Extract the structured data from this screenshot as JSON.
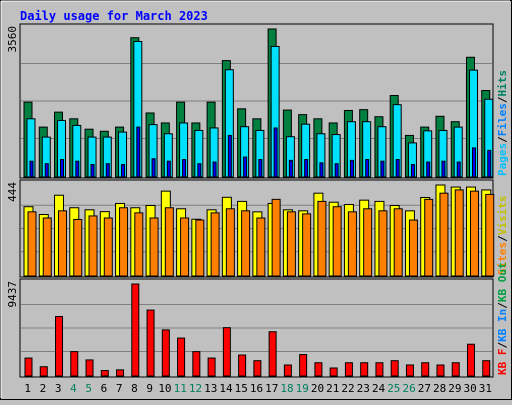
{
  "chart_data": [
    {
      "type": "bar",
      "title": "Daily usage for March 2023",
      "ylabel_max": "3560",
      "legend": [
        "Pages",
        "Files",
        "Hits"
      ],
      "categories": [
        "1",
        "2",
        "3",
        "4",
        "5",
        "6",
        "7",
        "8",
        "9",
        "10",
        "11",
        "12",
        "13",
        "14",
        "15",
        "16",
        "17",
        "18",
        "19",
        "20",
        "21",
        "22",
        "23",
        "24",
        "25",
        "26",
        "27",
        "28",
        "29",
        "30",
        "31"
      ],
      "weekend_days": [
        "4",
        "5",
        "11",
        "12",
        "18",
        "19",
        "25",
        "26"
      ],
      "series": [
        {
          "name": "Hits",
          "color": "#008040",
          "values": [
            1800,
            1200,
            1560,
            1400,
            1150,
            1100,
            1200,
            3350,
            1540,
            1300,
            1800,
            1300,
            1800,
            2800,
            1640,
            1400,
            3560,
            1610,
            1500,
            1400,
            1300,
            1600,
            1620,
            1450,
            1960,
            1000,
            1200,
            1460,
            1330,
            2880,
            2080
          ]
        },
        {
          "name": "Files",
          "color": "#00e0ff",
          "values": [
            1400,
            960,
            1360,
            1240,
            960,
            960,
            1080,
            3260,
            1260,
            1040,
            1300,
            1120,
            1180,
            2580,
            1210,
            1120,
            3140,
            970,
            1270,
            1040,
            1020,
            1330,
            1330,
            1210,
            1740,
            820,
            1110,
            1120,
            1200,
            2570,
            1870
          ]
        },
        {
          "name": "Pages",
          "color": "#0000ff",
          "values": [
            380,
            320,
            420,
            380,
            300,
            320,
            300,
            1200,
            440,
            380,
            420,
            320,
            360,
            1000,
            480,
            420,
            1180,
            400,
            420,
            340,
            320,
            400,
            420,
            380,
            420,
            300,
            360,
            380,
            360,
            700,
            640
          ]
        }
      ]
    },
    {
      "type": "bar",
      "ylabel_max": "444",
      "legend": [
        "Visits",
        "Sites"
      ],
      "categories": [
        "1",
        "2",
        "3",
        "4",
        "5",
        "6",
        "7",
        "8",
        "9",
        "10",
        "11",
        "12",
        "13",
        "14",
        "15",
        "16",
        "17",
        "18",
        "19",
        "20",
        "21",
        "22",
        "23",
        "24",
        "25",
        "26",
        "27",
        "28",
        "29",
        "30",
        "31"
      ],
      "series": [
        {
          "name": "Visits",
          "color": "#ffff00",
          "values": [
            338,
            300,
            394,
            333,
            323,
            314,
            354,
            333,
            344,
            414,
            328,
            277,
            323,
            384,
            364,
            313,
            354,
            323,
            318,
            404,
            360,
            349,
            370,
            364,
            344,
            318,
            383,
            444,
            434,
            434,
            420
          ]
        },
        {
          "name": "Sites",
          "color": "#ff8000",
          "values": [
            313,
            283,
            318,
            276,
            293,
            283,
            333,
            308,
            283,
            333,
            283,
            273,
            308,
            328,
            318,
            283,
            374,
            313,
            303,
            364,
            338,
            313,
            328,
            318,
            328,
            273,
            374,
            404,
            420,
            414,
            398
          ]
        }
      ]
    },
    {
      "type": "bar",
      "ylabel_max": "9437",
      "legend": [
        "KB F",
        "KB In",
        "KB Out"
      ],
      "categories": [
        "1",
        "2",
        "3",
        "4",
        "5",
        "6",
        "7",
        "8",
        "9",
        "10",
        "11",
        "12",
        "13",
        "14",
        "15",
        "16",
        "17",
        "18",
        "19",
        "20",
        "21",
        "22",
        "23",
        "24",
        "25",
        "26",
        "27",
        "28",
        "29",
        "30",
        "31"
      ],
      "series": [
        {
          "name": "KB F",
          "color": "#ff0000",
          "values": [
            1840,
            950,
            6100,
            2500,
            1650,
            560,
            630,
            9437,
            6760,
            4730,
            3890,
            2500,
            1840,
            4960,
            2150,
            1570,
            4540,
            1130,
            2200,
            1360,
            820,
            1360,
            1360,
            1360,
            1570,
            1130,
            1360,
            1130,
            1360,
            3260,
            1570
          ]
        }
      ]
    }
  ]
}
